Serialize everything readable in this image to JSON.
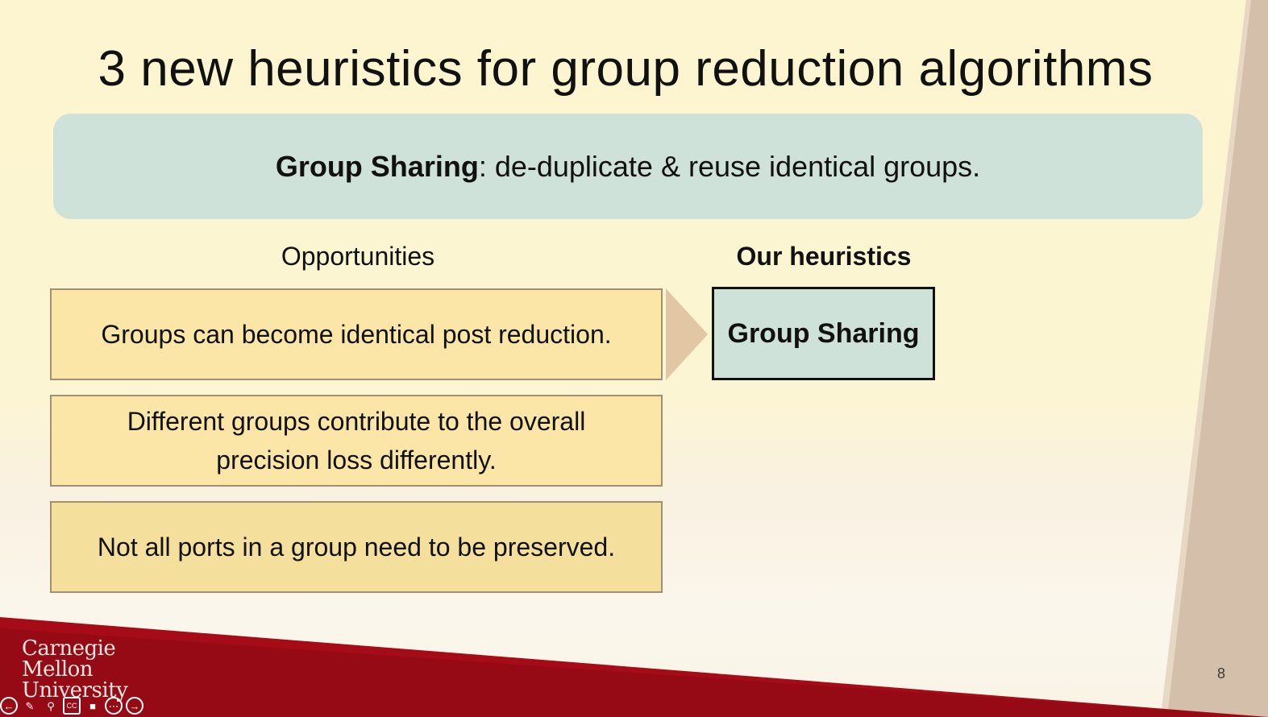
{
  "slide": {
    "title": "3 new heuristics for group reduction algorithms",
    "banner": {
      "term": "Group Sharing",
      "definition": ": de-duplicate & reuse identical groups."
    },
    "opportunities_heading": "Opportunities",
    "heuristics_heading": "Our heuristics",
    "opportunities": [
      "Groups can become identical post reduction.",
      "Different groups contribute to the overall precision loss differently.",
      "Not all ports in a group need to be preserved."
    ],
    "heuristics": [
      "Group Sharing"
    ],
    "page_number": "8"
  },
  "logo": {
    "line1": "Carnegie",
    "line2": "Mellon",
    "line3": "University"
  },
  "controls": {
    "icons": [
      "prev-icon",
      "pen-icon",
      "zoom-icon",
      "captions-icon",
      "video-icon",
      "more-icon",
      "next-icon"
    ],
    "captions_label": "CC"
  },
  "colors": {
    "accent_red": "#a50c18",
    "banner_teal": "#cfe2da",
    "box_yellow": "#fbe6a8"
  }
}
